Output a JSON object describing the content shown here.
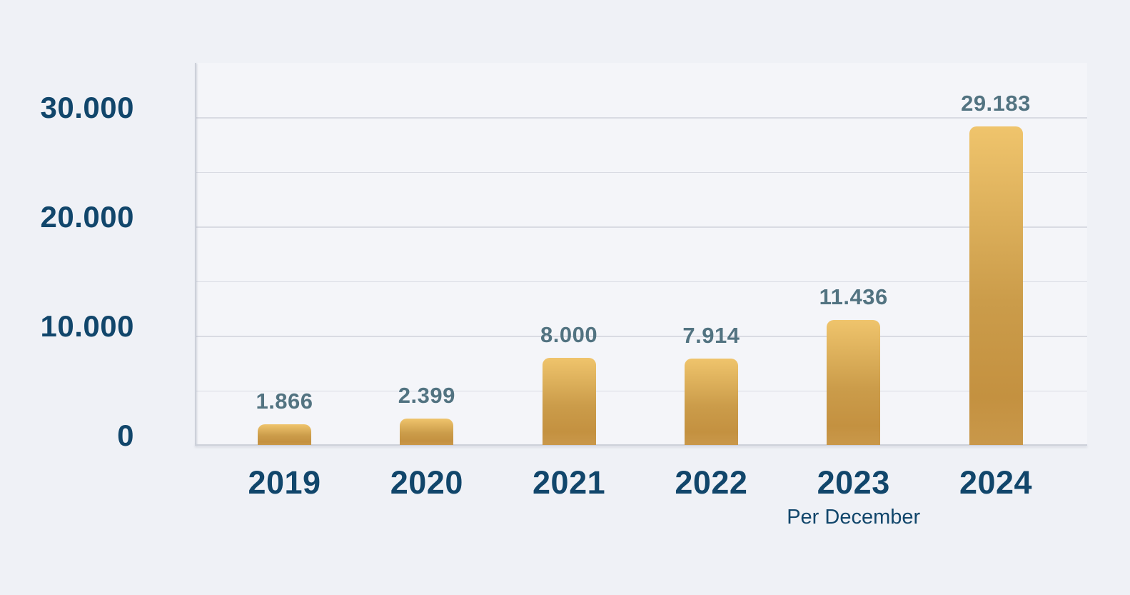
{
  "chart_data": {
    "type": "bar",
    "title": "",
    "xlabel": "",
    "ylabel": "",
    "legend": "none",
    "grid": "horizontal",
    "categories": [
      "2019",
      "2020",
      "2021",
      "2022",
      "2023",
      "2024"
    ],
    "values": [
      1866,
      2399,
      8000,
      7914,
      11436,
      29183
    ],
    "value_labels": [
      "1.866",
      "2.399",
      "8.000",
      "7.914",
      "11.436",
      "29.183"
    ],
    "category_sublabels": [
      "",
      "",
      "",
      "",
      "Per December",
      ""
    ],
    "y_ticks": [
      {
        "value": 0,
        "label": "0"
      },
      {
        "value": 10000,
        "label": "10.000"
      },
      {
        "value": 20000,
        "label": "20.000"
      },
      {
        "value": 30000,
        "label": "30.000"
      }
    ],
    "gridline_step": 5000,
    "ylim": [
      0,
      35000
    ],
    "colors": {
      "page_bg": "#eff1f6",
      "plot_bg": "#f4f5f9",
      "gridline": "#d9dbe3",
      "axis_line": "#cdd1da",
      "axis_text": "#11466b",
      "value_text": "#527381",
      "bar_top": "#efc46c",
      "bar_mid": "#cb9c4a",
      "bar_dark": "#c49140",
      "bar_bottom": "#c9984a"
    }
  }
}
